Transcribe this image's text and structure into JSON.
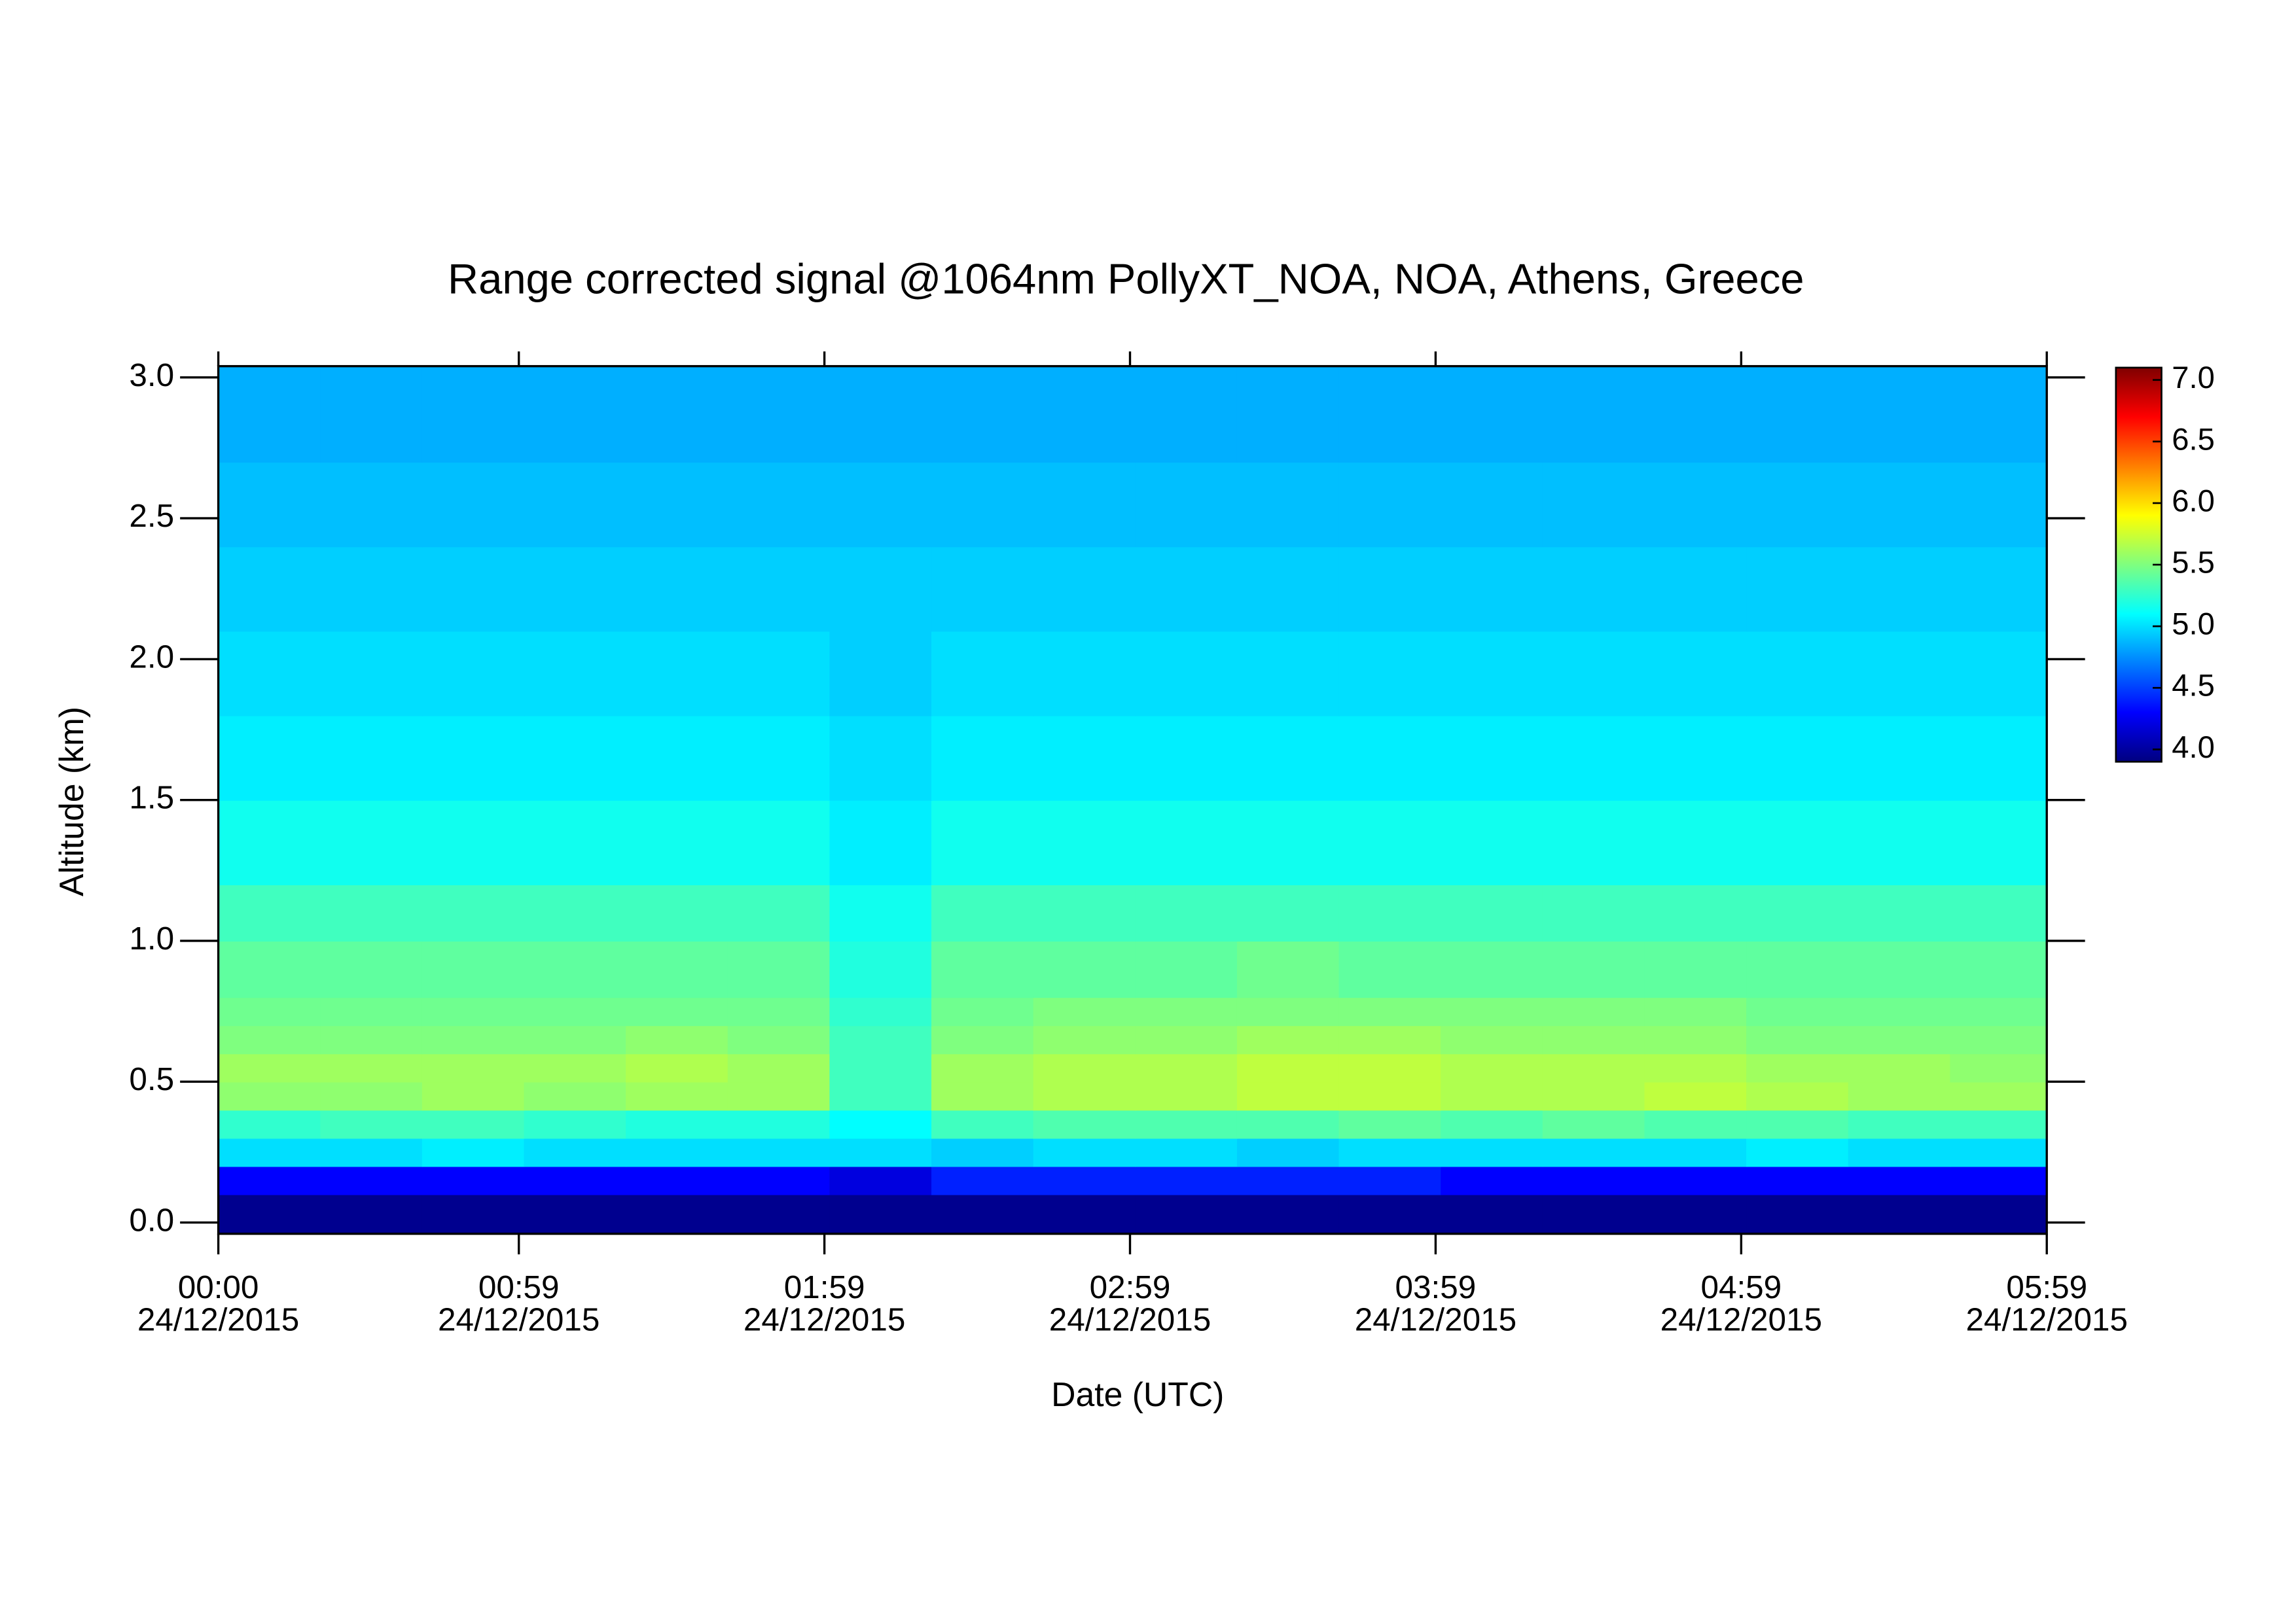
{
  "chart_data": {
    "type": "heatmap",
    "title": "Range corrected signal @1064nm  PollyXT_NOA, NOA, Athens, Greece",
    "x_label": "Date (UTC)",
    "y_label": "Altitude (km)",
    "xlim": [
      "2015-12-24T00:00",
      "2015-12-24T05:59"
    ],
    "xticks": [
      {
        "value": "2015-12-24T00:00",
        "label": [
          "00:00",
          "24/12/2015"
        ]
      },
      {
        "value": "2015-12-24T00:59",
        "label": [
          "00:59",
          "24/12/2015"
        ]
      },
      {
        "value": "2015-12-24T01:59",
        "label": [
          "01:59",
          "24/12/2015"
        ]
      },
      {
        "value": "2015-12-24T02:59",
        "label": [
          "02:59",
          "24/12/2015"
        ]
      },
      {
        "value": "2015-12-24T03:59",
        "label": [
          "03:59",
          "24/12/2015"
        ]
      },
      {
        "value": "2015-12-24T04:59",
        "label": [
          "04:59",
          "24/12/2015"
        ]
      },
      {
        "value": "2015-12-24T05:59",
        "label": [
          "05:59",
          "24/12/2015"
        ]
      }
    ],
    "ylim": [
      -0.04,
      3.04
    ],
    "yticks": [
      {
        "value": 0,
        "label": "0.0"
      },
      0.5,
      {
        "value": 1,
        "label": "1.0"
      },
      1.5,
      {
        "value": 2,
        "label": "2.0"
      },
      2.5,
      {
        "value": 3,
        "label": "3.0"
      }
    ],
    "x": [
      "2015-12-24T00:00",
      "2015-12-24T00:20",
      "2015-12-24T00:40",
      "2015-12-24T01:00",
      "2015-12-24T01:20",
      "2015-12-24T01:40",
      "2015-12-24T02:00",
      "2015-12-24T02:20",
      "2015-12-24T02:40",
      "2015-12-24T03:00",
      "2015-12-24T03:20",
      "2015-12-24T03:40",
      "2015-12-24T04:00",
      "2015-12-24T04:20",
      "2015-12-24T04:40",
      "2015-12-24T05:00",
      "2015-12-24T05:20",
      "2015-12-24T05:40",
      "2015-12-24T05:59"
    ],
    "y": [
      -0.04,
      0.1,
      0.2,
      0.3,
      0.4,
      0.5,
      0.6,
      0.7,
      0.8,
      1.0,
      1.2,
      1.5,
      1.8,
      2.1,
      2.4,
      2.7,
      3.04
    ],
    "z": [
      [
        3.95,
        3.95,
        3.95,
        3.95,
        3.95,
        3.95,
        3.95,
        3.95,
        3.95,
        3.95,
        3.95,
        3.95,
        3.95,
        3.95,
        3.95,
        3.95,
        3.95,
        3.95
      ],
      [
        4.3,
        4.3,
        4.3,
        4.3,
        4.3,
        4.3,
        4.2,
        4.4,
        4.4,
        4.4,
        4.4,
        4.4,
        4.3,
        4.3,
        4.3,
        4.3,
        4.3,
        4.3
      ],
      [
        5.0,
        5.0,
        5.05,
        5.0,
        5.0,
        5.0,
        5.0,
        4.95,
        5.0,
        5.0,
        4.95,
        5.0,
        5.0,
        5.0,
        5.0,
        5.05,
        5.0,
        5.0
      ],
      [
        5.25,
        5.3,
        5.3,
        5.25,
        5.2,
        5.2,
        5.1,
        5.3,
        5.35,
        5.35,
        5.35,
        5.4,
        5.35,
        5.4,
        5.35,
        5.35,
        5.3,
        5.3
      ],
      [
        5.55,
        5.55,
        5.6,
        5.55,
        5.6,
        5.6,
        5.3,
        5.6,
        5.65,
        5.65,
        5.7,
        5.7,
        5.65,
        5.65,
        5.7,
        5.65,
        5.6,
        5.6
      ],
      [
        5.6,
        5.6,
        5.6,
        5.6,
        5.65,
        5.6,
        5.3,
        5.6,
        5.65,
        5.65,
        5.7,
        5.7,
        5.65,
        5.65,
        5.65,
        5.6,
        5.6,
        5.55
      ],
      [
        5.5,
        5.5,
        5.5,
        5.5,
        5.55,
        5.5,
        5.3,
        5.5,
        5.55,
        5.55,
        5.6,
        5.6,
        5.55,
        5.55,
        5.55,
        5.5,
        5.5,
        5.5
      ],
      [
        5.45,
        5.45,
        5.45,
        5.45,
        5.45,
        5.45,
        5.25,
        5.45,
        5.5,
        5.5,
        5.5,
        5.5,
        5.5,
        5.5,
        5.5,
        5.45,
        5.45,
        5.45
      ],
      [
        5.4,
        5.4,
        5.4,
        5.4,
        5.4,
        5.4,
        5.2,
        5.4,
        5.4,
        5.4,
        5.45,
        5.4,
        5.4,
        5.4,
        5.4,
        5.4,
        5.4,
        5.4
      ],
      [
        5.3,
        5.3,
        5.3,
        5.3,
        5.3,
        5.3,
        5.15,
        5.3,
        5.3,
        5.3,
        5.3,
        5.3,
        5.3,
        5.3,
        5.3,
        5.3,
        5.3,
        5.3
      ],
      [
        5.15,
        5.15,
        5.15,
        5.15,
        5.15,
        5.15,
        5.05,
        5.15,
        5.15,
        5.15,
        5.15,
        5.15,
        5.15,
        5.15,
        5.15,
        5.15,
        5.15,
        5.15
      ],
      [
        5.05,
        5.05,
        5.05,
        5.05,
        5.05,
        5.05,
        5.0,
        5.05,
        5.05,
        5.05,
        5.05,
        5.05,
        5.05,
        5.05,
        5.05,
        5.05,
        5.05,
        5.05
      ],
      [
        5.0,
        5.0,
        5.0,
        5.0,
        5.0,
        5.0,
        4.95,
        5.0,
        5.0,
        5.0,
        5.0,
        5.0,
        5.0,
        5.0,
        5.0,
        5.0,
        5.0,
        5.0
      ],
      [
        4.95,
        4.95,
        4.95,
        4.95,
        4.95,
        4.95,
        4.95,
        4.95,
        4.95,
        4.95,
        4.95,
        4.95,
        4.95,
        4.95,
        4.95,
        4.95,
        4.95,
        4.95
      ],
      [
        4.9,
        4.9,
        4.9,
        4.9,
        4.9,
        4.9,
        4.9,
        4.9,
        4.9,
        4.9,
        4.9,
        4.9,
        4.9,
        4.9,
        4.9,
        4.9,
        4.9,
        4.9
      ],
      [
        4.85,
        4.85,
        4.85,
        4.85,
        4.85,
        4.85,
        4.85,
        4.85,
        4.85,
        4.85,
        4.85,
        4.85,
        4.85,
        4.85,
        4.85,
        4.85,
        4.85,
        4.85
      ]
    ],
    "zlim": [
      3.9,
      7.1
    ],
    "zticks": [
      {
        "value": 4,
        "label": "4.0"
      },
      4.5,
      {
        "value": 5,
        "label": "5.0"
      },
      5.5,
      {
        "value": 6,
        "label": "6.0"
      },
      6.5,
      {
        "value": 7,
        "label": "7.0"
      }
    ],
    "colormap": [
      "#00007f",
      "#0000ff",
      "#007fff",
      "#00ffff",
      "#7fff7f",
      "#ffff00",
      "#ff7f00",
      "#ff0000",
      "#7f0000"
    ]
  }
}
